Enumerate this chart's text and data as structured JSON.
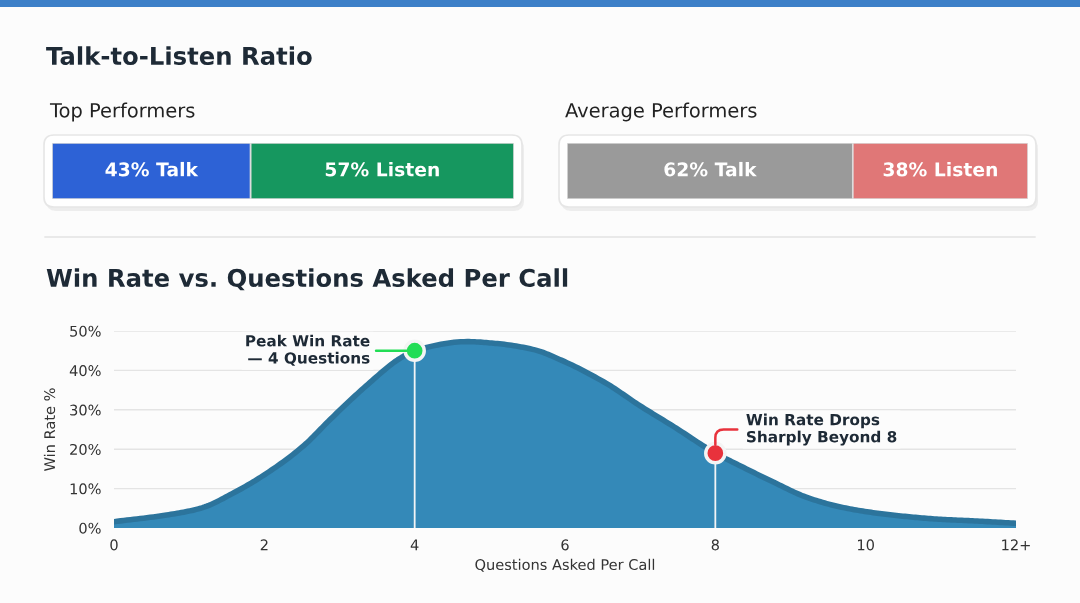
{
  "chart_data": [
    {
      "type": "bar",
      "orientation": "horizontal",
      "stacked": true,
      "title": "Talk-to-Listen Ratio",
      "subtitle": "Top Performers",
      "categories": [
        null
      ],
      "series": [
        {
          "color": "#2d62d6",
          "values": [
            43
          ],
          "value_labels": [
            "43% Talk"
          ]
        },
        {
          "color": "#16975f",
          "values": [
            57
          ],
          "value_labels": [
            "57% Listen"
          ]
        }
      ],
      "xlim": [
        0,
        100
      ],
      "tick_labels": false
    },
    {
      "type": "bar",
      "orientation": "horizontal",
      "stacked": true,
      "subtitle": "Average Performers",
      "categories": [
        null
      ],
      "series": [
        {
          "color": "#9a9a9a",
          "values": [
            62
          ],
          "value_labels": [
            "62% Talk"
          ]
        },
        {
          "color": "#e07777",
          "values": [
            38
          ],
          "value_labels": [
            "38% Listen"
          ]
        }
      ],
      "xlim": [
        0,
        100
      ],
      "tick_labels": false
    },
    {
      "type": "area",
      "title": "Win Rate vs. Questions Asked Per Call",
      "xlabel": "Questions Asked Per Call",
      "ylabel": "Win Rate %",
      "x": [
        0,
        0.7,
        1.15,
        1.6,
        2,
        2.5,
        2.9,
        3.35,
        3.8,
        4,
        4.7,
        5.1,
        5.6,
        5.95,
        6.55,
        7,
        7.45,
        8,
        8.35,
        8.8,
        9.2,
        9.65,
        10.1,
        10.55,
        11,
        11.45,
        12
      ],
      "series": [
        {
          "color": "#3489b8",
          "values": [
            1.6,
            3.3,
            5,
            9,
            13.5,
            20.5,
            28,
            36,
            43,
            45,
            47.3,
            46.8,
            45.2,
            42.6,
            36.7,
            31,
            25.7,
            19,
            15.6,
            11.4,
            7.9,
            5.4,
            3.9,
            2.9,
            2.2,
            1.8,
            1.2
          ]
        },
        {
          "type": "lollipop",
          "x": [
            4,
            8
          ],
          "values": [
            45,
            19
          ],
          "colors": [
            "#22dd55",
            "#e8323c"
          ],
          "marker": "circle"
        }
      ],
      "xlim": [
        0,
        12
      ],
      "xticks": [
        0,
        2,
        4,
        6,
        8,
        10,
        {
          "value": 12,
          "label": "12+"
        }
      ],
      "ylim": [
        0,
        50
      ],
      "yticks": [
        {
          "value": 0,
          "label": "0%"
        },
        {
          "value": 10,
          "label": "10%"
        },
        {
          "value": 20,
          "label": "20%"
        },
        {
          "value": 30,
          "label": "30%"
        },
        {
          "value": 40,
          "label": "40%"
        },
        {
          "value": 50,
          "label": "50%"
        }
      ],
      "grid": "y",
      "annotations": [
        {
          "text": "Peak Win Rate\n— 4 Questions",
          "x": 4,
          "y": 45
        },
        {
          "text": "Win Rate Drops\nSharply Beyond 8",
          "x": 8,
          "y": 19
        }
      ]
    }
  ]
}
